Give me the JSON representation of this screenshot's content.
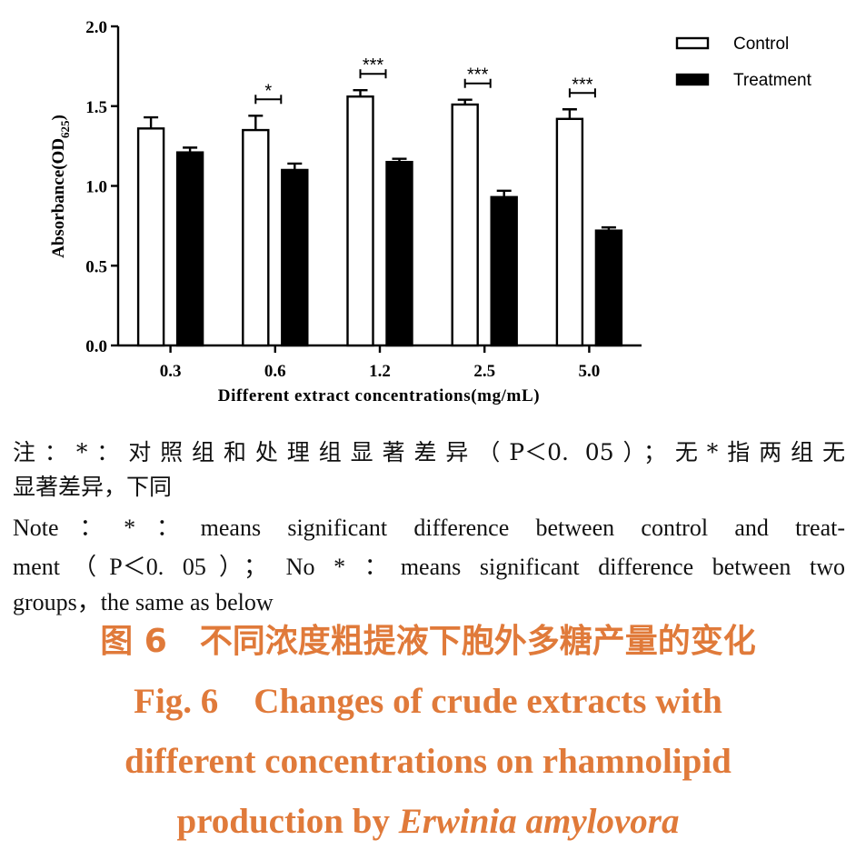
{
  "chart_data": {
    "type": "bar",
    "title": "",
    "xlabel": "Different extract concentrations(mg/mL)",
    "ylabel": "Absorbance(OD",
    "ylabel_subscript": "625",
    "ylabel_suffix": ")",
    "ylim": [
      0,
      2.0
    ],
    "yticks": [
      "0.0",
      "0.5",
      "1.0",
      "1.5",
      "2.0"
    ],
    "categories": [
      "0.3",
      "0.6",
      "1.2",
      "2.5",
      "5.0"
    ],
    "series": [
      {
        "name": "Control",
        "fill": "#ffffff",
        "values": [
          1.36,
          1.35,
          1.56,
          1.51,
          1.42
        ],
        "errors": [
          0.07,
          0.09,
          0.04,
          0.03,
          0.06
        ]
      },
      {
        "name": "Treatment",
        "fill": "#000000",
        "values": [
          1.21,
          1.1,
          1.15,
          0.93,
          0.72
        ],
        "errors": [
          0.03,
          0.04,
          0.02,
          0.04,
          0.02
        ]
      }
    ],
    "significance": [
      "",
      "*",
      "***",
      "***",
      "***"
    ],
    "legend_position": "top-right",
    "grid": false
  },
  "notes": {
    "cn_line1": "注：*：对照组和处理组显著差异（P＜0. 05）；无*指两组无",
    "cn_line2": "显著差异，下同",
    "en_line1": "Note：*：means significant difference between control and treat-",
    "en_line2": "ment（P＜0. 05）； No  *  ：means significant difference between two",
    "en_line3": "groups，the same as below"
  },
  "caption": {
    "cn": "图 6　不同浓度粗提液下胞外多糖产量的变化",
    "en_line1": "Fig. 6　Changes of crude extracts with",
    "en_line2": "different concentrations on rhamnolipid",
    "en_line3_prefix": "production by ",
    "en_line3_italic": "Erwinia amylovora"
  }
}
